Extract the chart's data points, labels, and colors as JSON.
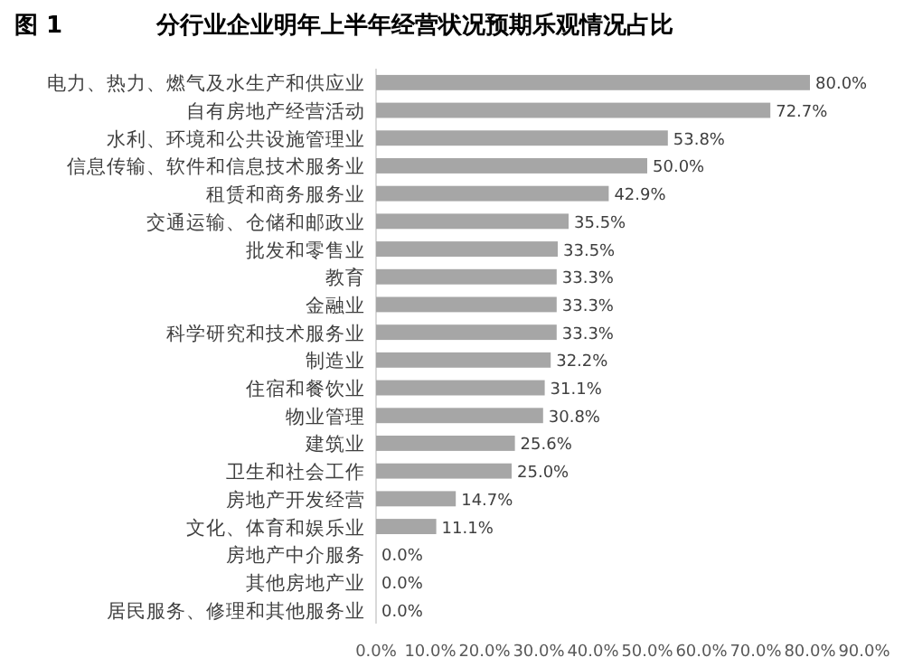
{
  "chart_data": {
    "type": "bar",
    "orientation": "horizontal",
    "title": "图 1　　　　分行业企业明年上半年经营状况预期乐观情况占比",
    "categories": [
      "电力、热力、燃气及水生产和供应业",
      "自有房地产经营活动",
      "水利、环境和公共设施管理业",
      "信息传输、软件和信息技术服务业",
      "租赁和商务服务业",
      "交通运输、仓储和邮政业",
      "批发和零售业",
      "教育",
      "金融业",
      "科学研究和技术服务业",
      "制造业",
      "住宿和餐饮业",
      "物业管理",
      "建筑业",
      "卫生和社会工作",
      "房地产开发经营",
      "文化、体育和娱乐业",
      "房地产中介服务",
      "其他房地产业",
      "居民服务、修理和其他服务业"
    ],
    "values": [
      80.0,
      72.7,
      53.8,
      50.0,
      42.9,
      35.5,
      33.5,
      33.3,
      33.3,
      33.3,
      32.2,
      31.1,
      30.8,
      25.6,
      25.0,
      14.7,
      11.1,
      0.0,
      0.0,
      0.0
    ],
    "value_labels": [
      "80.0%",
      "72.7%",
      "53.8%",
      "50.0%",
      "42.9%",
      "35.5%",
      "33.5%",
      "33.3%",
      "33.3%",
      "33.3%",
      "32.2%",
      "31.1%",
      "30.8%",
      "25.6%",
      "25.0%",
      "14.7%",
      "11.1%",
      "0.0%",
      "0.0%",
      "0.0%"
    ],
    "color": "#a6a6a6",
    "xlim": [
      0,
      90
    ],
    "xticks": [
      {
        "value": 0,
        "label": "0.0%"
      },
      {
        "value": 10,
        "label": "10.0%"
      },
      {
        "value": 20,
        "label": "20.0%"
      },
      {
        "value": 30,
        "label": "30.0%"
      },
      {
        "value": 40,
        "label": "40.0%"
      },
      {
        "value": 50,
        "label": "50.0%"
      },
      {
        "value": 60,
        "label": "60.0%"
      },
      {
        "value": 70,
        "label": "70.0%"
      },
      {
        "value": 80,
        "label": "80.0%"
      },
      {
        "value": 90,
        "label": "90.0%"
      }
    ]
  }
}
